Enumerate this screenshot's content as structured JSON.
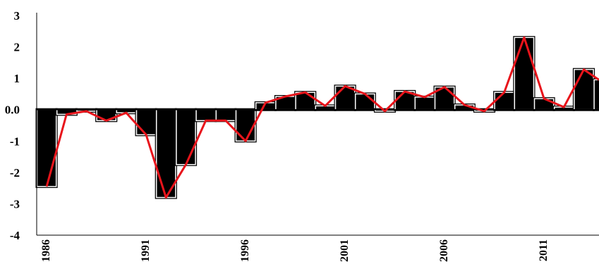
{
  "chart_data": {
    "type": "bar",
    "title": "",
    "xlabel": "",
    "ylabel": "",
    "x": [
      1986,
      1987,
      1988,
      1989,
      1990,
      1991,
      1992,
      1993,
      1994,
      1995,
      1996,
      1997,
      1998,
      1999,
      2000,
      2001,
      2002,
      2003,
      2004,
      2005,
      2006,
      2007,
      2008,
      2009,
      2010,
      2011,
      2012,
      2013,
      2014
    ],
    "xticks": [
      "1986",
      "1991",
      "1996",
      "2001",
      "2006",
      "2011"
    ],
    "yticks": [
      "3",
      "2",
      "1",
      "0.0",
      "-1",
      "-2",
      "-3",
      "-4"
    ],
    "ylim": [
      -4,
      3
    ],
    "grid": false,
    "series": [
      {
        "kind": "bar",
        "color": "#000000",
        "values": [
          -2.45,
          -0.15,
          -0.05,
          -0.35,
          -0.1,
          -0.8,
          -2.8,
          -1.75,
          -0.35,
          -0.35,
          -1.0,
          0.22,
          0.42,
          0.55,
          0.12,
          0.75,
          0.5,
          -0.05,
          0.58,
          0.4,
          0.72,
          0.15,
          -0.05,
          0.55,
          2.3,
          0.35,
          0.08,
          1.28,
          0.95
        ]
      },
      {
        "kind": "line",
        "color": "#e8141b",
        "values": [
          -2.45,
          -0.15,
          -0.05,
          -0.35,
          -0.1,
          -0.8,
          -2.8,
          -1.75,
          -0.35,
          -0.35,
          -1.0,
          0.22,
          0.42,
          0.55,
          0.12,
          0.75,
          0.5,
          -0.05,
          0.58,
          0.4,
          0.72,
          0.15,
          -0.05,
          0.55,
          2.3,
          0.35,
          0.08,
          1.28,
          0.95
        ]
      }
    ]
  }
}
